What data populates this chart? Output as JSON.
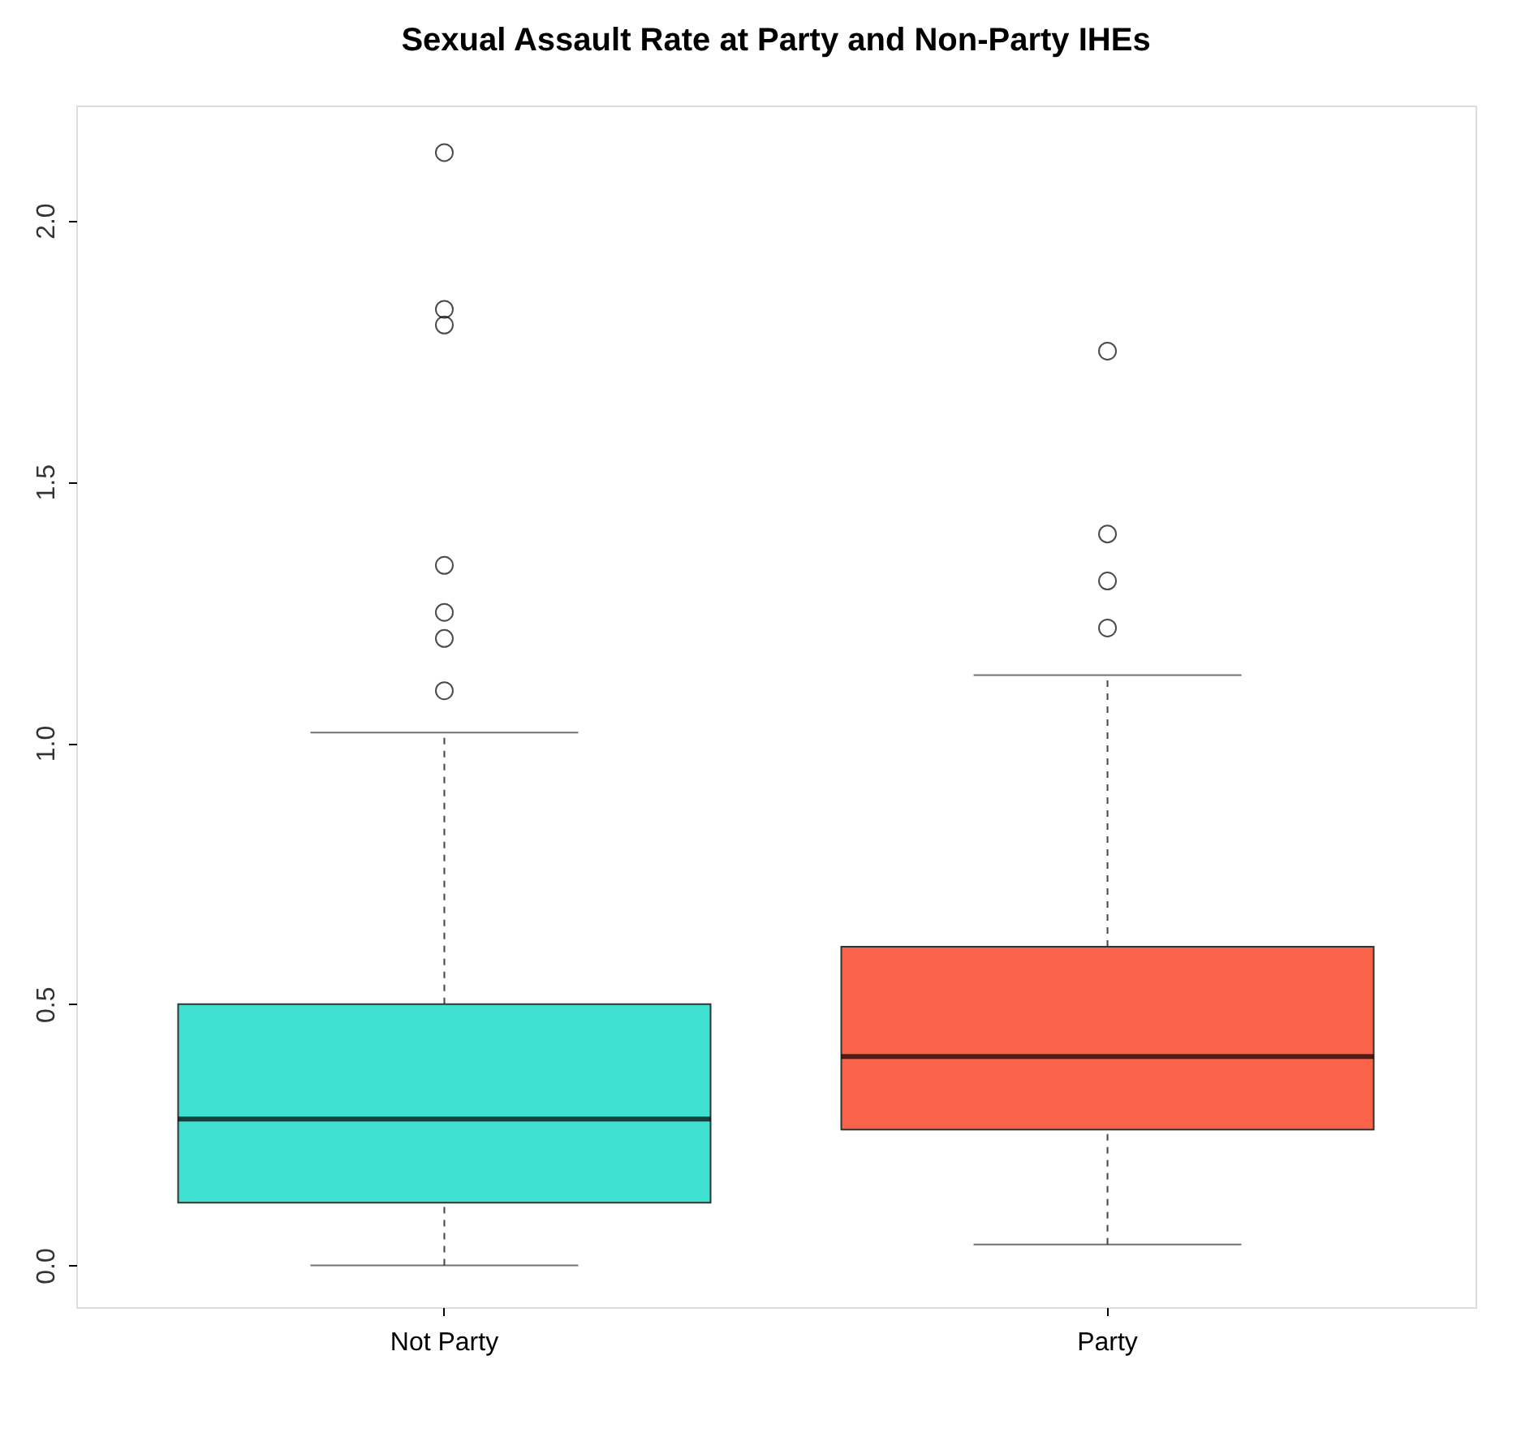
{
  "chart_data": {
    "type": "box",
    "title": "Sexual Assault Rate at Party and Non-Party IHEs",
    "categories": [
      "Not Party",
      "Party"
    ],
    "colors": [
      "#40e0d0",
      "#fa6349"
    ],
    "boxes": [
      {
        "low": 0.0,
        "q1": 0.12,
        "median": 0.28,
        "q3": 0.5,
        "high": 1.02,
        "outliers": [
          1.1,
          1.2,
          1.25,
          1.34,
          1.8,
          1.83,
          2.13
        ]
      },
      {
        "low": 0.04,
        "q1": 0.26,
        "median": 0.4,
        "q3": 0.61,
        "high": 1.13,
        "outliers": [
          1.22,
          1.31,
          1.4,
          1.75
        ]
      }
    ],
    "ylim": [
      -0.08,
      2.22
    ],
    "yticks": [
      {
        "value": 0,
        "label": "0.0"
      },
      0.5,
      {
        "value": 1,
        "label": "1.0"
      },
      1.5,
      {
        "value": 2,
        "label": "2.0"
      }
    ],
    "grid": false
  }
}
